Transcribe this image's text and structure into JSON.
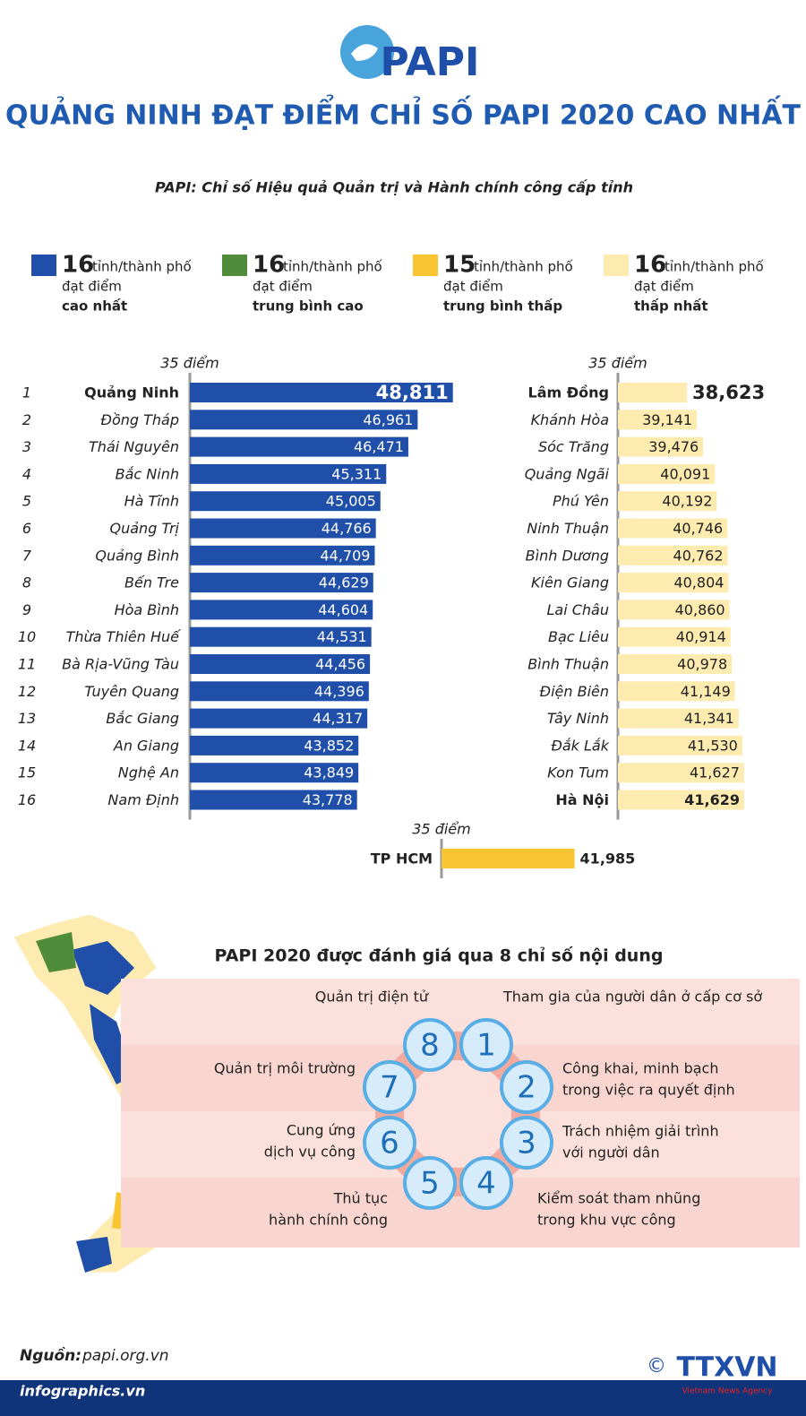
{
  "header": {
    "logo": "PAPI",
    "title": "QUẢNG NINH ĐẠT ĐIỂM CHỈ SỐ PAPI 2020 CAO NHẤT",
    "subtitle": "PAPI: Chỉ số Hiệu quả Quản trị và Hành chính công cấp tỉnh"
  },
  "legend": [
    {
      "color": "#1f4fa8",
      "count": 16,
      "lines": [
        "tỉnh/thành phố",
        "đạt điểm",
        "cao nhất"
      ]
    },
    {
      "color": "#4f8c3c",
      "count": 16,
      "lines": [
        "tỉnh/thành phố",
        "đạt điểm",
        "trung bình cao"
      ]
    },
    {
      "color": "#f9c532",
      "count": 15,
      "lines": [
        "tỉnh/thành phố",
        "đạt điểm",
        "trung bình thấp"
      ]
    },
    {
      "color": "#fdebb0",
      "count": 16,
      "lines": [
        "tỉnh/thành phố",
        "đạt điểm",
        "thấp nhất"
      ]
    }
  ],
  "chart_data": [
    {
      "type": "bar",
      "orientation": "horizontal",
      "color": "#1f4fa8",
      "ranks": [
        1,
        2,
        3,
        4,
        5,
        6,
        7,
        8,
        9,
        10,
        11,
        12,
        13,
        14,
        15,
        16
      ],
      "categories": [
        "Quảng Ninh",
        "Đồng Tháp",
        "Thái Nguyên",
        "Bắc Ninh",
        "Hà Tĩnh",
        "Quảng Trị",
        "Quảng Bình",
        "Bến Tre",
        "Hòa Bình",
        "Thừa Thiên Huế",
        "Bà Rịa-Vũng Tàu",
        "Tuyên Quang",
        "Bắc Giang",
        "An Giang",
        "Nghệ An",
        "Nam Định"
      ],
      "values": [
        48.811,
        46.961,
        46.471,
        45.311,
        45.005,
        44.766,
        44.709,
        44.629,
        44.604,
        44.531,
        44.456,
        44.396,
        44.317,
        43.852,
        43.849,
        43.778
      ],
      "value_labels": [
        "48,811",
        "46,961",
        "46,471",
        "45,311",
        "45,005",
        "44,766",
        "44,709",
        "44,629",
        "44,604",
        "44,531",
        "44,456",
        "44,396",
        "44,317",
        "43,852",
        "43,849",
        "43,778"
      ],
      "xlim": [
        35,
        50
      ],
      "xticks": [
        {
          "value": 35,
          "label": "35 điểm"
        }
      ]
    },
    {
      "type": "bar",
      "orientation": "horizontal",
      "color": "#fdebb0",
      "categories": [
        "Lâm Đồng",
        "Khánh Hòa",
        "Sóc Trăng",
        "Quảng Ngãi",
        "Phú Yên",
        "Ninh Thuận",
        "Bình Dương",
        "Kiên Giang",
        "Lai Châu",
        "Bạc Liêu",
        "Bình Thuận",
        "Điện Biên",
        "Tây Ninh",
        "Đắk Lắk",
        "Kon Tum",
        "Hà Nội"
      ],
      "values": [
        38.623,
        39.141,
        39.476,
        40.091,
        40.192,
        40.746,
        40.762,
        40.804,
        40.86,
        40.914,
        40.978,
        41.149,
        41.341,
        41.53,
        41.627,
        41.629
      ],
      "value_labels": [
        "38,623",
        "39,141",
        "39,476",
        "40,091",
        "40,192",
        "40,746",
        "40,762",
        "40,804",
        "40,860",
        "40,914",
        "40,978",
        "41,149",
        "41,341",
        "41,530",
        "41,627",
        "41,629"
      ],
      "xlim": [
        35,
        50
      ],
      "xticks": [
        {
          "value": 35,
          "label": "35 điểm"
        }
      ]
    },
    {
      "type": "bar",
      "orientation": "horizontal",
      "color": "#f9c532",
      "categories": [
        "TP HCM"
      ],
      "values": [
        41.985
      ],
      "value_labels": [
        "41,985"
      ],
      "xlim": [
        35,
        50
      ],
      "xticks": [
        {
          "value": 35,
          "label": "35 điểm"
        }
      ]
    }
  ],
  "indicators": {
    "title": "PAPI 2020 được đánh giá qua 8 chỉ số nội dung",
    "items": [
      {
        "number": 1,
        "lines": [
          "Tham gia của người dân ở cấp cơ sở"
        ]
      },
      {
        "number": 2,
        "lines": [
          "Công khai, minh bạch",
          "trong việc ra quyết định"
        ]
      },
      {
        "number": 3,
        "lines": [
          "Trách nhiệm giải trình",
          "với người dân"
        ]
      },
      {
        "number": 4,
        "lines": [
          "Kiểm soát tham nhũng",
          "trong khu vực công"
        ]
      },
      {
        "number": 5,
        "lines": [
          "Thủ tục",
          "hành chính công"
        ]
      },
      {
        "number": 6,
        "lines": [
          "Cung ứng",
          "dịch vụ công"
        ]
      },
      {
        "number": 7,
        "lines": [
          "Quản trị môi trường"
        ]
      },
      {
        "number": 8,
        "lines": [
          "Quản trị điện tử"
        ]
      }
    ]
  },
  "footer": {
    "source_label": "Nguồn:",
    "source": "papi.org.vn",
    "site": "infographics.vn",
    "copyright": "©",
    "agency": "TTXVN",
    "agency_en": "Vietnam News Agency"
  }
}
